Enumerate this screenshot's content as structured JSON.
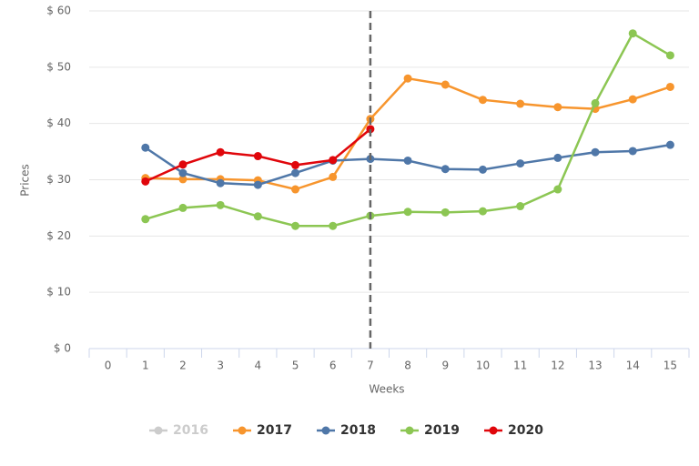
{
  "chart_data": {
    "type": "line",
    "x_label": "Weeks",
    "y_label": "Prices",
    "x": [
      0,
      1,
      2,
      3,
      4,
      5,
      6,
      7,
      8,
      9,
      10,
      11,
      12,
      13,
      14,
      15
    ],
    "xlim": [
      -0.5,
      15.5
    ],
    "xticks": [
      0,
      1,
      2,
      3,
      4,
      5,
      6,
      7,
      8,
      9,
      10,
      11,
      12,
      13,
      14,
      15
    ],
    "ylim": [
      0,
      60
    ],
    "yticks": [
      {
        "value": 0,
        "label": "$ 0"
      },
      {
        "value": 10,
        "label": "$ 10"
      },
      {
        "value": 20,
        "label": "$ 20"
      },
      {
        "value": 30,
        "label": "$ 30"
      },
      {
        "value": 40,
        "label": "$ 40"
      },
      {
        "value": 50,
        "label": "$ 50"
      },
      {
        "value": 60,
        "label": "$ 60"
      }
    ],
    "grid": true,
    "x_plotline": 7,
    "legend": "bottom",
    "series": [
      {
        "name": "2016",
        "color": "#cccccc",
        "visible": false,
        "values": [
          null,
          null,
          null,
          null,
          null,
          null,
          null,
          null,
          null,
          null,
          null,
          null,
          null,
          null,
          null,
          null
        ]
      },
      {
        "name": "2017",
        "color": "#f7952d",
        "values": [
          null,
          30.3,
          30.1,
          30.1,
          29.9,
          28.3,
          30.5,
          40.8,
          48.0,
          46.9,
          44.2,
          43.5,
          42.9,
          42.6,
          44.3,
          46.5
        ]
      },
      {
        "name": "2018",
        "color": "#4f77a8",
        "values": [
          null,
          35.7,
          31.2,
          29.4,
          29.1,
          31.2,
          33.4,
          33.7,
          33.4,
          31.9,
          31.8,
          32.9,
          33.9,
          34.9,
          35.1,
          36.2
        ]
      },
      {
        "name": "2019",
        "color": "#8cc653",
        "values": [
          null,
          23.0,
          25.0,
          25.5,
          23.5,
          21.8,
          21.8,
          23.6,
          24.3,
          24.2,
          24.4,
          25.3,
          28.3,
          43.6,
          56.0,
          52.1
        ]
      },
      {
        "name": "2020",
        "color": "#e0060b",
        "values": [
          null,
          29.7,
          32.7,
          34.9,
          34.2,
          32.6,
          33.5,
          39.0,
          null,
          null,
          null,
          null,
          null,
          null,
          null,
          null
        ]
      }
    ]
  }
}
